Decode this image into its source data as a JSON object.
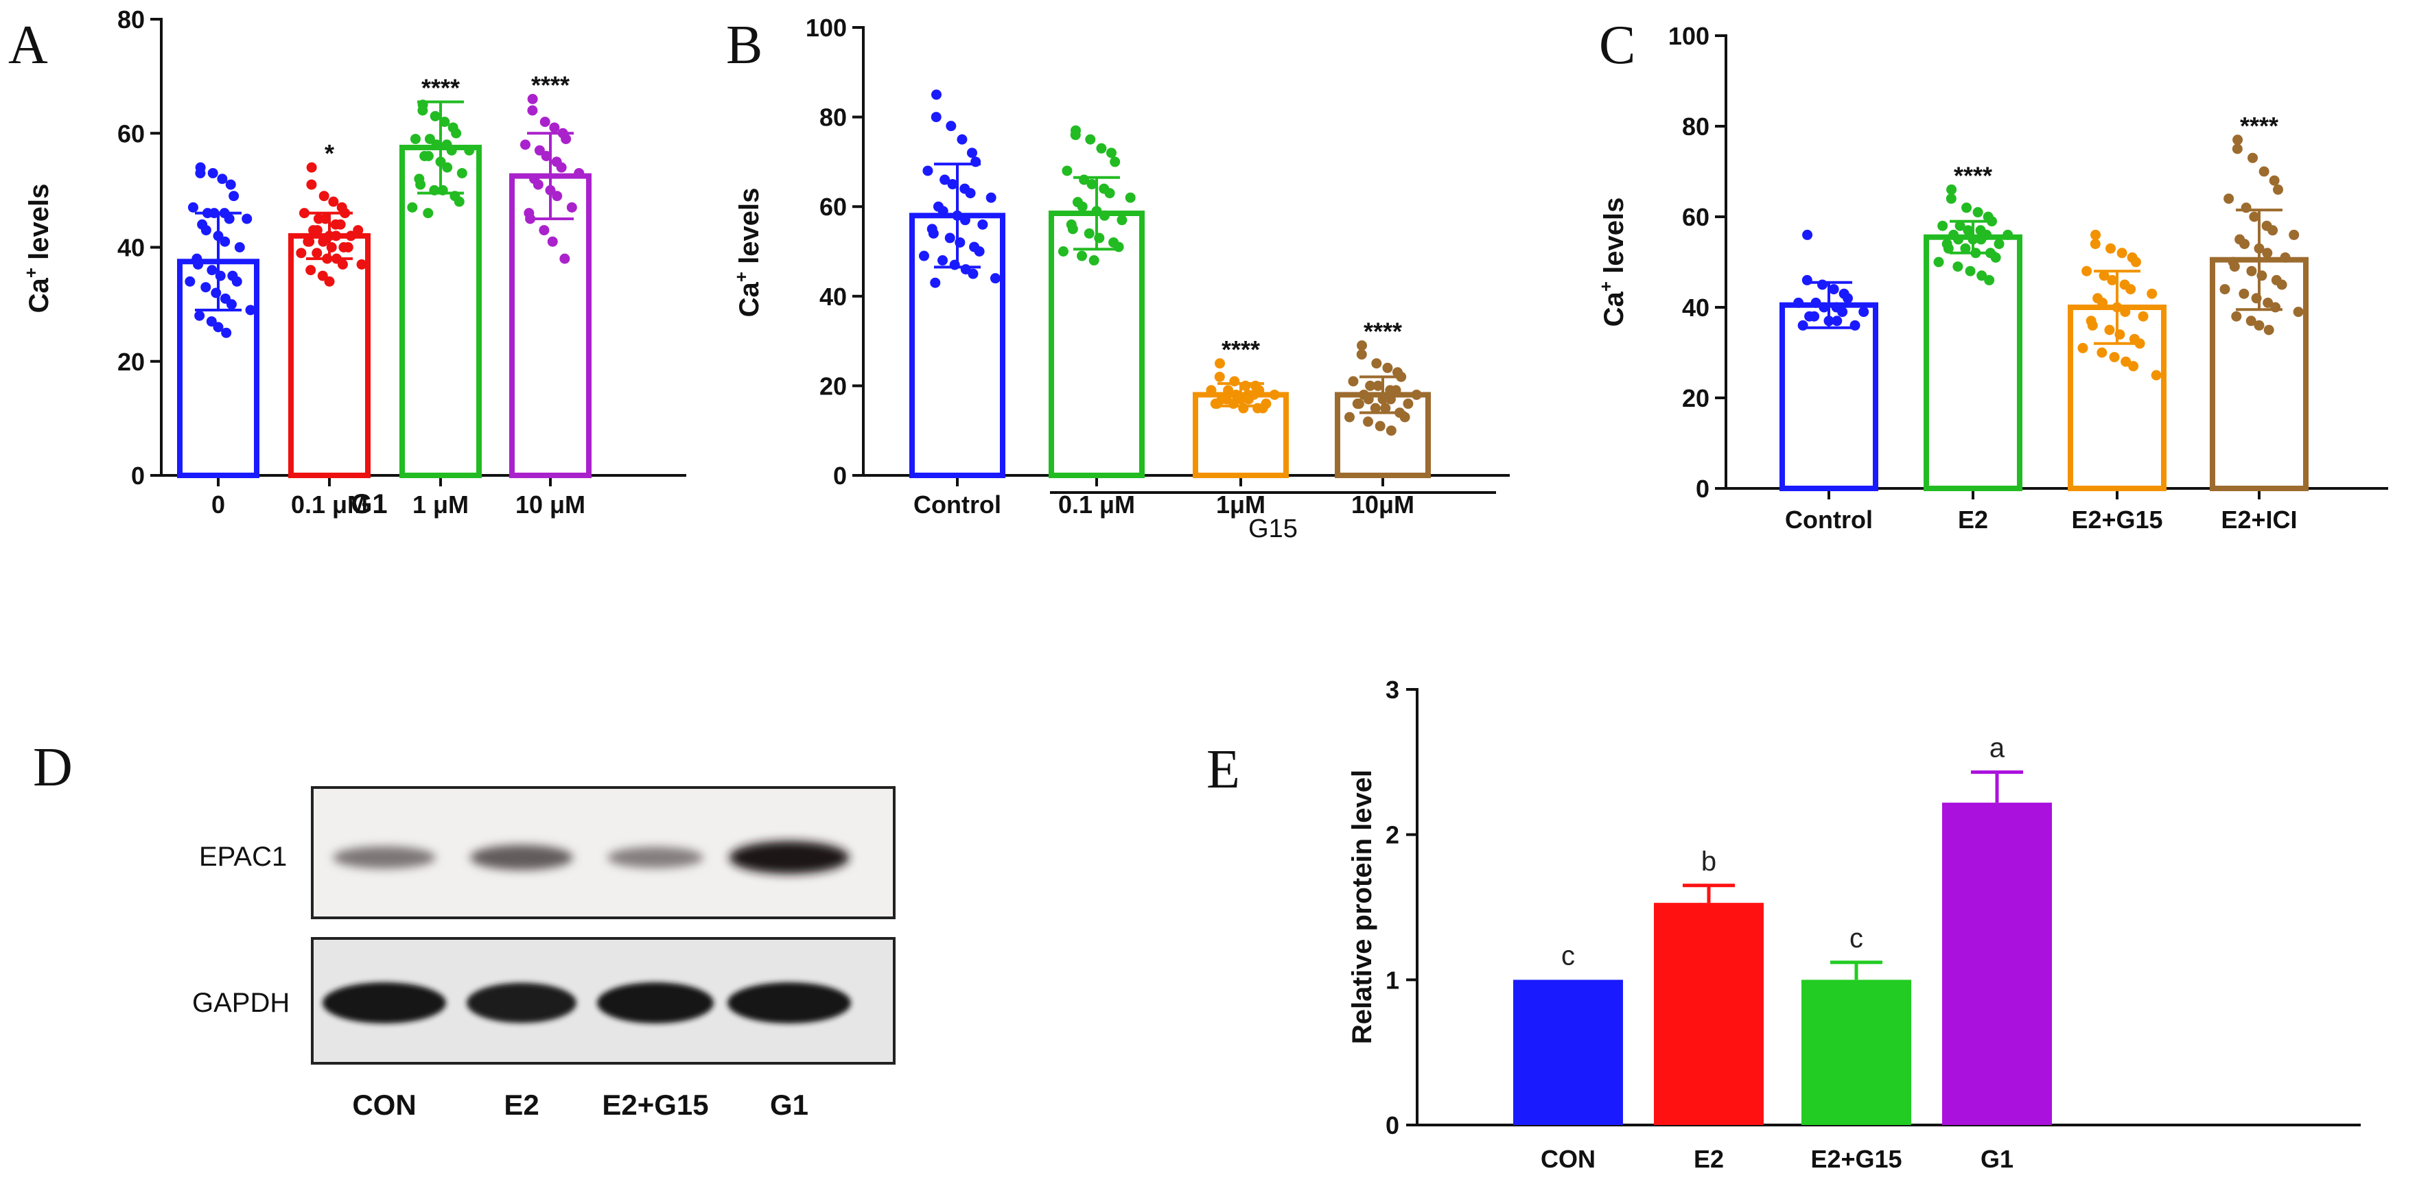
{
  "chart_data": [
    {
      "panel": "A",
      "type": "bar",
      "title": "",
      "xlabel": "G1",
      "ylabel": "Ca+ levels",
      "ylabel_base": "Ca",
      "ylabel_sup": "+",
      "ylabel_rest": " levels",
      "ylim": [
        0,
        80
      ],
      "yticks": [
        "0",
        "20",
        "40",
        "60",
        "80"
      ],
      "categories": [
        "0",
        "0.1 μM",
        "1 μM",
        "10 μM"
      ],
      "values": [
        37.5,
        42,
        57.5,
        52.5
      ],
      "errors": [
        8.5,
        4,
        8,
        7.5
      ],
      "significance": [
        "",
        "*",
        "****",
        "****"
      ],
      "colors": [
        "#1a1aff",
        "#ee1111",
        "#22bb22",
        "#aa22cc"
      ],
      "points": [
        [
          54,
          53,
          53,
          52,
          51,
          49,
          47,
          46,
          46,
          46,
          45,
          45,
          44,
          43,
          42,
          41,
          40,
          38,
          37,
          36,
          35,
          35,
          34,
          34,
          33,
          32,
          31,
          30,
          29,
          28,
          27,
          26,
          25
        ],
        [
          54,
          51,
          49,
          48,
          47,
          46,
          46,
          45,
          45,
          44,
          44,
          43,
          43,
          43,
          42,
          42,
          42,
          41,
          41,
          41,
          40,
          40,
          40,
          39,
          39,
          38,
          38,
          37,
          37,
          36,
          35,
          34
        ],
        [
          65,
          64,
          63,
          62,
          61,
          60,
          59,
          59,
          58,
          58,
          57,
          57,
          56,
          56,
          55,
          54,
          53,
          52,
          51,
          50,
          50,
          49,
          48,
          47,
          46
        ],
        [
          66,
          64,
          62,
          61,
          60,
          59,
          58,
          57,
          56,
          55,
          54,
          53,
          52,
          51,
          50,
          49,
          47,
          46,
          45,
          43,
          41,
          38
        ]
      ]
    },
    {
      "panel": "B",
      "type": "bar",
      "title": "",
      "xlabel": "",
      "ylabel": "Ca+ levels",
      "ylabel_base": "Ca",
      "ylabel_sup": "+",
      "ylabel_rest": " levels",
      "ylim": [
        0,
        100
      ],
      "yticks": [
        "0",
        "20",
        "40",
        "60",
        "80",
        "100"
      ],
      "categories": [
        "Control",
        "0.1 μM",
        "1μM",
        "10μM"
      ],
      "group_label": "G15",
      "values": [
        58,
        58.5,
        18,
        18
      ],
      "errors": [
        11.5,
        8,
        2.5,
        4
      ],
      "significance": [
        "",
        "",
        "****",
        "****"
      ],
      "colors": [
        "#1a1aff",
        "#22bb22",
        "#f39200",
        "#9c6b2e"
      ],
      "points": [
        [
          85,
          80,
          78,
          75,
          72,
          70,
          68,
          66,
          65,
          64,
          63,
          62,
          60,
          59,
          58,
          57,
          56,
          55,
          54,
          53,
          52,
          51,
          50,
          49,
          48,
          47,
          46,
          45,
          44,
          43
        ],
        [
          77,
          76,
          75,
          73,
          72,
          70,
          68,
          66,
          65,
          64,
          63,
          62,
          61,
          60,
          59,
          58,
          57,
          56,
          55,
          54,
          53,
          52,
          51,
          50,
          49,
          48
        ],
        [
          25,
          22,
          21,
          20,
          20,
          19,
          19,
          19,
          18,
          18,
          18,
          18,
          17,
          17,
          17,
          17,
          16,
          16,
          16,
          16,
          15,
          15,
          15
        ],
        [
          29,
          27,
          25,
          24,
          23,
          22,
          21,
          20,
          20,
          19,
          19,
          18,
          18,
          17,
          17,
          17,
          16,
          16,
          16,
          15,
          15,
          14,
          13,
          13,
          12,
          11,
          10
        ]
      ]
    },
    {
      "panel": "C",
      "type": "bar",
      "title": "",
      "xlabel": "",
      "ylabel": "Ca+ levels",
      "ylabel_base": "Ca",
      "ylabel_sup": "+",
      "ylabel_rest": " levels",
      "ylim": [
        0,
        100
      ],
      "yticks": [
        "0",
        "20",
        "40",
        "60",
        "80",
        "100"
      ],
      "categories": [
        "Control",
        "E2",
        "E2+G15",
        "E2+ICI"
      ],
      "values": [
        40.5,
        55.5,
        40,
        50.5
      ],
      "errors": [
        5,
        3.5,
        8,
        11
      ],
      "significance": [
        "",
        "****",
        "",
        "****"
      ],
      "colors": [
        "#1a1aff",
        "#22bb22",
        "#f39200",
        "#9c6b2e"
      ],
      "points": [
        [
          56,
          46,
          45,
          44,
          43,
          42,
          41,
          41,
          40,
          40,
          39,
          39,
          38,
          38,
          37,
          37,
          36,
          36
        ],
        [
          66,
          64,
          62,
          61,
          60,
          59,
          58,
          58,
          57,
          57,
          56,
          56,
          56,
          55,
          55,
          55,
          54,
          54,
          53,
          53,
          52,
          52,
          51,
          50,
          49,
          48,
          47,
          46
        ],
        [
          56,
          54,
          53,
          52,
          51,
          50,
          48,
          47,
          46,
          45,
          44,
          43,
          42,
          41,
          40,
          39,
          38,
          37,
          36,
          35,
          34,
          33,
          32,
          31,
          30,
          29,
          28,
          27,
          25
        ],
        [
          77,
          75,
          73,
          70,
          68,
          66,
          64,
          62,
          60,
          58,
          57,
          56,
          55,
          54,
          53,
          52,
          51,
          50,
          49,
          48,
          47,
          46,
          45,
          44,
          43,
          42,
          41,
          40,
          39,
          38,
          37,
          36,
          35
        ]
      ]
    },
    {
      "panel": "E",
      "type": "bar",
      "title": "",
      "xlabel": "",
      "ylabel": "Relative protein level",
      "ylim": [
        0,
        3
      ],
      "yticks": [
        "0",
        "1",
        "2",
        "3"
      ],
      "categories": [
        "CON",
        "E2",
        "E2+G15",
        "G1"
      ],
      "values": [
        1.0,
        1.53,
        1.0,
        2.22
      ],
      "errors": [
        0,
        0.12,
        0.12,
        0.21
      ],
      "significance": [
        "c",
        "b",
        "c",
        "a"
      ],
      "colors": [
        "#1a1aff",
        "#ff1111",
        "#22cc22",
        "#aa11dd"
      ]
    }
  ],
  "blot": {
    "panel": "D",
    "rows": [
      "EPAC1",
      "GAPDH"
    ],
    "lanes": [
      "CON",
      "E2",
      "E2+G15",
      "G1"
    ],
    "epac1_intensity": [
      0.45,
      0.6,
      0.4,
      1.0
    ],
    "gapdh_intensity": [
      1.0,
      0.92,
      1.0,
      1.0
    ]
  },
  "panel_letters": [
    "A",
    "B",
    "C",
    "D",
    "E"
  ]
}
